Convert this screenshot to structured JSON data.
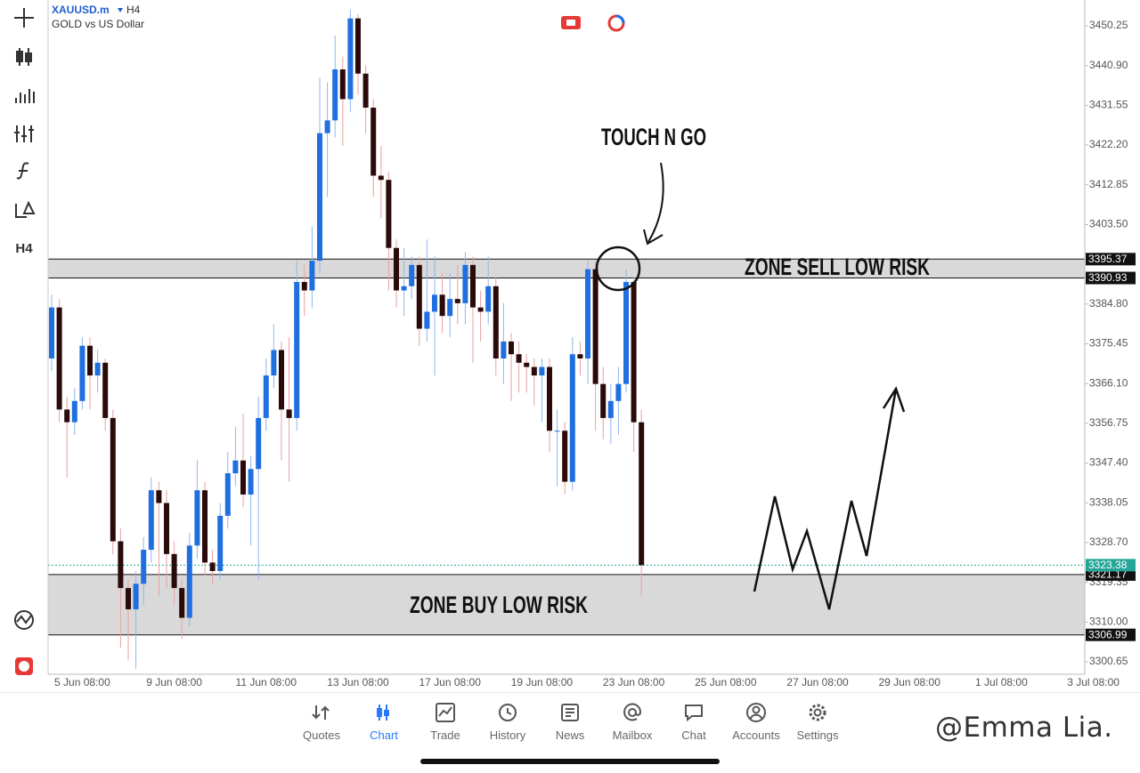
{
  "header": {
    "symbol": "XAUUSD.m",
    "timeframe": "H4",
    "description": "GOLD vs US Dollar"
  },
  "toolbar": {
    "timeframe": "H4"
  },
  "chart_data": {
    "type": "candlestick",
    "up_color": "#1f6fe0",
    "down_color": "#2b0a0a",
    "up_wick": "#8fb4ef",
    "down_wick": "#e8a0a0",
    "open": [
      3372,
      3384,
      3360,
      3357,
      3362,
      3375,
      3368,
      3371,
      3358,
      3329,
      3318,
      3313,
      3319,
      3327,
      3341,
      3338,
      3326,
      3318,
      3311,
      3328,
      3341,
      3324,
      3322,
      3335,
      3345,
      3348,
      3340,
      3346,
      3358,
      3368,
      3374,
      3360,
      3358,
      3390,
      3388,
      3395,
      3425,
      3428,
      3440,
      3433,
      3452,
      3439,
      3431,
      3415,
      3414,
      3398,
      3388,
      3389,
      3394,
      3379,
      3383,
      3387,
      3382,
      3386,
      3385,
      3394,
      3384,
      3383,
      3389,
      3372,
      3376,
      3373,
      3371,
      3370,
      3368,
      3370,
      3355,
      3355,
      3343,
      3373,
      3372,
      3393,
      3366,
      3358,
      3362,
      3366,
      3390,
      3357
    ],
    "high": [
      3387,
      3386,
      3363,
      3365,
      3377,
      3377,
      3374,
      3372,
      3360,
      3332,
      3320,
      3322,
      3330,
      3344,
      3343,
      3341,
      3329,
      3320,
      3331,
      3348,
      3343,
      3327,
      3338,
      3350,
      3356,
      3359,
      3349,
      3363,
      3372,
      3380,
      3376,
      3377,
      3395,
      3394,
      3403,
      3438,
      3437,
      3448,
      3443,
      3454,
      3453,
      3441,
      3433,
      3422,
      3416,
      3400,
      3398,
      3396,
      3396,
      3400,
      3396,
      3392,
      3392,
      3394,
      3397,
      3396,
      3388,
      3396,
      3391,
      3385,
      3378,
      3376,
      3373,
      3372,
      3372,
      3372,
      3360,
      3357,
      3377,
      3376,
      3395,
      3395,
      3370,
      3366,
      3370,
      3393,
      3391,
      3360
    ],
    "low": [
      3369,
      3357,
      3344,
      3354,
      3360,
      3360,
      3364,
      3355,
      3326,
      3304,
      3301,
      3299,
      3314,
      3324,
      3316,
      3318,
      3314,
      3306,
      3309,
      3325,
      3321,
      3319,
      3320,
      3332,
      3342,
      3337,
      3328,
      3320,
      3355,
      3365,
      3348,
      3343,
      3355,
      3382,
      3384,
      3392,
      3410,
      3424,
      3422,
      3430,
      3434,
      3425,
      3410,
      3405,
      3388,
      3384,
      3382,
      3386,
      3375,
      3376,
      3368,
      3378,
      3377,
      3380,
      3380,
      3371,
      3376,
      3380,
      3368,
      3366,
      3362,
      3364,
      3364,
      3361,
      3357,
      3350,
      3342,
      3340,
      3341,
      3368,
      3366,
      3355,
      3353,
      3352,
      3354,
      3364,
      3350,
      3316
    ],
    "close": [
      3384,
      3360,
      3357,
      3362,
      3375,
      3368,
      3371,
      3358,
      3329,
      3318,
      3313,
      3319,
      3327,
      3341,
      3338,
      3326,
      3318,
      3311,
      3328,
      3341,
      3324,
      3322,
      3335,
      3345,
      3348,
      3340,
      3346,
      3358,
      3368,
      3374,
      3360,
      3358,
      3390,
      3388,
      3395,
      3425,
      3428,
      3440,
      3433,
      3452,
      3439,
      3431,
      3415,
      3414,
      3398,
      3388,
      3389,
      3394,
      3379,
      3383,
      3387,
      3382,
      3386,
      3385,
      3394,
      3384,
      3383,
      3389,
      3372,
      3376,
      3373,
      3371,
      3370,
      3368,
      3370,
      3355,
      3355,
      3343,
      3373,
      3372,
      3393,
      3366,
      3358,
      3362,
      3366,
      3390,
      3357,
      3323.38
    ],
    "x_labels": [
      "5 Jun 08:00",
      "9 Jun 08:00",
      "11 Jun 08:00",
      "13 Jun 08:00",
      "17 Jun 08:00",
      "19 Jun 08:00",
      "23 Jun 08:00",
      "25 Jun 08:00",
      "27 Jun 08:00",
      "29 Jun 08:00",
      "1 Jul 08:00",
      "3 Jul 08:00"
    ],
    "ylim": [
      3297.72,
      3456.32
    ],
    "yticks": [
      3450.25,
      {
        "value": 3440.9,
        "label": "3440.90"
      },
      3431.55,
      {
        "value": 3422.2,
        "label": "3422.20"
      },
      3412.85,
      {
        "value": 3403.5,
        "label": "3403.50"
      },
      {
        "value": 3384.8,
        "label": "3384.80"
      },
      3375.45,
      {
        "value": 3366.1,
        "label": "3366.10"
      },
      3356.75,
      {
        "value": 3347.4,
        "label": "3347.40"
      },
      3338.05,
      {
        "value": 3328.7,
        "label": "3328.70"
      },
      3319.35,
      {
        "value": 3310,
        "label": "3310.00"
      },
      3300.65
    ],
    "zones": [
      {
        "label": "ZONE SELL LOW RISK",
        "top": 3395.37,
        "bottom": 3390.93
      },
      {
        "label": "ZONE BUY LOW RISK",
        "top": 3321.17,
        "bottom": 3306.99
      }
    ],
    "last_price": 3323.38,
    "last_color": "#26a69a",
    "annotation": "TOUCH N GO"
  },
  "nav": [
    "Quotes",
    "Chart",
    "Trade",
    "History",
    "News",
    "Mailbox",
    "Chat",
    "Accounts",
    "Settings"
  ],
  "watermark": "@Emma Lia."
}
